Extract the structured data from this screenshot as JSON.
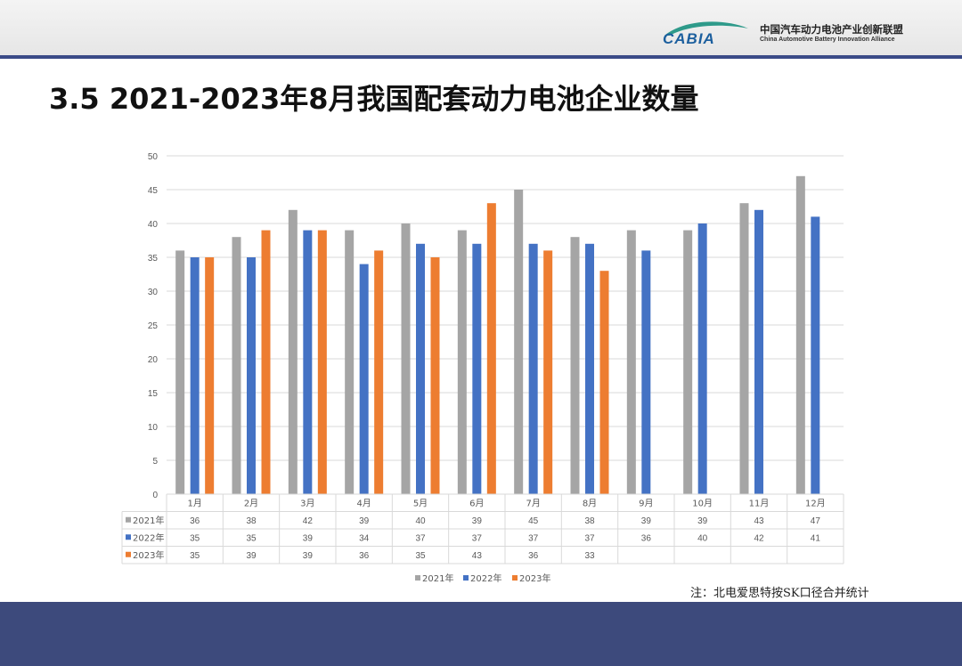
{
  "header": {
    "logo_text": "CABIA",
    "org_name_cn": "中国汽车动力电池产业创新联盟",
    "org_name_en": "China Automotive Battery Innovation Alliance"
  },
  "slide": {
    "title": "3.5 2021-2023年8月我国配套动力电池企业数量",
    "note": "注：北电爱思特按SK口径合并统计"
  },
  "colors": {
    "s2021": "#a5a5a5",
    "s2022": "#4472c4",
    "s2023": "#ed7d31",
    "header_line": "#3a4a87",
    "footer": "#3d4a7c"
  },
  "chart_data": {
    "type": "bar",
    "categories": [
      "1月",
      "2月",
      "3月",
      "4月",
      "5月",
      "6月",
      "7月",
      "8月",
      "9月",
      "10月",
      "11月",
      "12月"
    ],
    "series": [
      {
        "name": "2021年",
        "values": [
          36,
          38,
          42,
          39,
          40,
          39,
          45,
          38,
          39,
          39,
          43,
          47
        ]
      },
      {
        "name": "2022年",
        "values": [
          35,
          35,
          39,
          34,
          37,
          37,
          37,
          37,
          36,
          40,
          42,
          41
        ]
      },
      {
        "name": "2023年",
        "values": [
          35,
          39,
          39,
          36,
          35,
          43,
          36,
          33,
          null,
          null,
          null,
          null
        ]
      }
    ],
    "ylim": [
      0,
      50
    ],
    "yticks": [
      0,
      5,
      10,
      15,
      20,
      25,
      30,
      35,
      40,
      45,
      50
    ],
    "grid": true,
    "legend": "bottom",
    "data_table": true
  }
}
